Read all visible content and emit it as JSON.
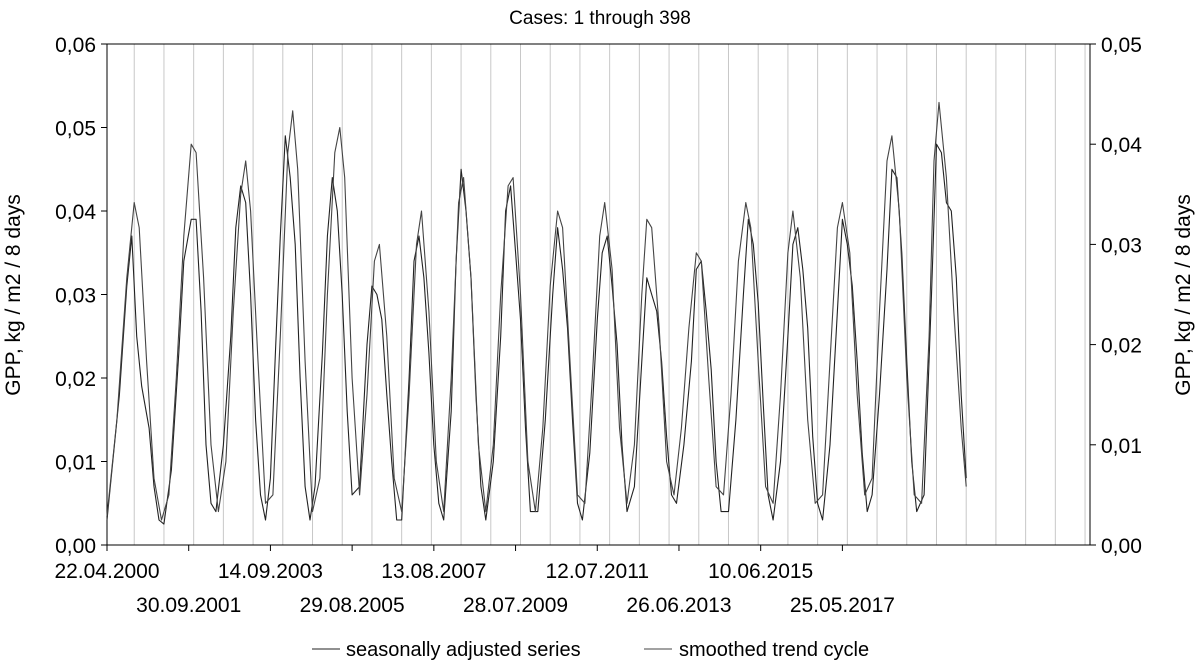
{
  "chart_data": {
    "type": "line",
    "title": "Cases: 1 through 398",
    "ylabel_left": "GPP, kg / m2 / 8 days",
    "ylabel_right": "GPP, kg / m2 / 8 days",
    "ylim_left": [
      0,
      0.06
    ],
    "ylim_right": [
      0,
      0.05
    ],
    "yticks_left": [
      "0,00",
      "0,01",
      "0,02",
      "0,03",
      "0,04",
      "0,05",
      "0,06"
    ],
    "yticks_right": [
      "0,00",
      "0,01",
      "0,02",
      "0,03",
      "0,04",
      "0,05"
    ],
    "x_case_range": [
      1,
      398
    ],
    "xticks_upper": [
      {
        "case": 1,
        "label": "22.04.2000"
      },
      {
        "case": 67,
        "label": "14.09.2003"
      },
      {
        "case": 133,
        "label": "13.08.2007"
      },
      {
        "case": 199,
        "label": "12.07.2011"
      },
      {
        "case": 265,
        "label": "10.06.2015"
      }
    ],
    "xticks_lower": [
      {
        "case": 34,
        "label": "30.09.2001"
      },
      {
        "case": 100,
        "label": "29.08.2005"
      },
      {
        "case": 166,
        "label": "28.07.2009"
      },
      {
        "case": 232,
        "label": "26.06.2013"
      },
      {
        "case": 298,
        "label": "25.05.2017"
      }
    ],
    "gridlines": "vertical",
    "legend_position": "bottom",
    "series": [
      {
        "name": "seasonally adjusted series",
        "color": "#222222",
        "points": [
          [
            1,
            0.003
          ],
          [
            6,
            0.018
          ],
          [
            9,
            0.031
          ],
          [
            11,
            0.037
          ],
          [
            13,
            0.025
          ],
          [
            15,
            0.019
          ],
          [
            18,
            0.014
          ],
          [
            20,
            0.007
          ],
          [
            22,
            0.003
          ],
          [
            24,
            0.0025
          ],
          [
            27,
            0.009
          ],
          [
            30,
            0.023
          ],
          [
            32,
            0.034
          ],
          [
            35,
            0.039
          ],
          [
            37,
            0.039
          ],
          [
            39,
            0.028
          ],
          [
            41,
            0.012
          ],
          [
            43,
            0.005
          ],
          [
            45,
            0.004
          ],
          [
            48,
            0.012
          ],
          [
            51,
            0.025
          ],
          [
            53,
            0.038
          ],
          [
            55,
            0.043
          ],
          [
            57,
            0.041
          ],
          [
            59,
            0.03
          ],
          [
            61,
            0.015
          ],
          [
            63,
            0.006
          ],
          [
            65,
            0.003
          ],
          [
            67,
            0.008
          ],
          [
            69,
            0.023
          ],
          [
            71,
            0.037
          ],
          [
            73,
            0.049
          ],
          [
            75,
            0.044
          ],
          [
            77,
            0.036
          ],
          [
            79,
            0.02
          ],
          [
            81,
            0.007
          ],
          [
            83,
            0.003
          ],
          [
            85,
            0.007
          ],
          [
            88,
            0.023
          ],
          [
            90,
            0.037
          ],
          [
            92,
            0.044
          ],
          [
            94,
            0.04
          ],
          [
            96,
            0.03
          ],
          [
            98,
            0.016
          ],
          [
            100,
            0.006
          ],
          [
            103,
            0.007
          ],
          [
            106,
            0.024
          ],
          [
            108,
            0.031
          ],
          [
            110,
            0.03
          ],
          [
            112,
            0.027
          ],
          [
            114,
            0.018
          ],
          [
            116,
            0.01
          ],
          [
            118,
            0.003
          ],
          [
            120,
            0.003
          ],
          [
            123,
            0.02
          ],
          [
            125,
            0.034
          ],
          [
            127,
            0.037
          ],
          [
            129,
            0.032
          ],
          [
            131,
            0.023
          ],
          [
            133,
            0.012
          ],
          [
            135,
            0.005
          ],
          [
            137,
            0.003
          ],
          [
            140,
            0.016
          ],
          [
            142,
            0.034
          ],
          [
            144,
            0.045
          ],
          [
            146,
            0.04
          ],
          [
            148,
            0.032
          ],
          [
            150,
            0.018
          ],
          [
            152,
            0.007
          ],
          [
            154,
            0.003
          ],
          [
            157,
            0.01
          ],
          [
            160,
            0.025
          ],
          [
            162,
            0.04
          ],
          [
            164,
            0.043
          ],
          [
            166,
            0.035
          ],
          [
            168,
            0.027
          ],
          [
            170,
            0.014
          ],
          [
            172,
            0.004
          ],
          [
            175,
            0.004
          ],
          [
            178,
            0.015
          ],
          [
            181,
            0.03
          ],
          [
            183,
            0.038
          ],
          [
            185,
            0.033
          ],
          [
            187,
            0.026
          ],
          [
            189,
            0.015
          ],
          [
            191,
            0.005
          ],
          [
            193,
            0.003
          ],
          [
            196,
            0.011
          ],
          [
            199,
            0.027
          ],
          [
            201,
            0.035
          ],
          [
            203,
            0.037
          ],
          [
            205,
            0.031
          ],
          [
            207,
            0.024
          ],
          [
            209,
            0.012
          ],
          [
            211,
            0.004
          ],
          [
            214,
            0.007
          ],
          [
            217,
            0.022
          ],
          [
            219,
            0.032
          ],
          [
            221,
            0.03
          ],
          [
            223,
            0.028
          ],
          [
            225,
            0.022
          ],
          [
            227,
            0.013
          ],
          [
            229,
            0.006
          ],
          [
            231,
            0.005
          ],
          [
            234,
            0.012
          ],
          [
            237,
            0.022
          ],
          [
            239,
            0.033
          ],
          [
            241,
            0.034
          ],
          [
            243,
            0.028
          ],
          [
            245,
            0.021
          ],
          [
            247,
            0.01
          ],
          [
            249,
            0.004
          ],
          [
            252,
            0.004
          ],
          [
            255,
            0.015
          ],
          [
            258,
            0.03
          ],
          [
            260,
            0.039
          ],
          [
            262,
            0.036
          ],
          [
            264,
            0.029
          ],
          [
            266,
            0.017
          ],
          [
            268,
            0.006
          ],
          [
            270,
            0.003
          ],
          [
            273,
            0.01
          ],
          [
            276,
            0.025
          ],
          [
            278,
            0.036
          ],
          [
            280,
            0.038
          ],
          [
            282,
            0.033
          ],
          [
            284,
            0.026
          ],
          [
            286,
            0.013
          ],
          [
            288,
            0.005
          ],
          [
            290,
            0.003
          ],
          [
            293,
            0.012
          ],
          [
            296,
            0.028
          ],
          [
            298,
            0.039
          ],
          [
            300,
            0.036
          ],
          [
            302,
            0.031
          ],
          [
            304,
            0.022
          ],
          [
            306,
            0.011
          ],
          [
            308,
            0.004
          ],
          [
            310,
            0.006
          ],
          [
            313,
            0.018
          ],
          [
            316,
            0.033
          ],
          [
            318,
            0.045
          ],
          [
            320,
            0.044
          ],
          [
            322,
            0.035
          ],
          [
            324,
            0.022
          ],
          [
            326,
            0.01
          ],
          [
            328,
            0.004
          ],
          [
            331,
            0.006
          ],
          [
            334,
            0.03
          ],
          [
            336,
            0.048
          ],
          [
            338,
            0.047
          ],
          [
            340,
            0.041
          ],
          [
            342,
            0.04
          ],
          [
            344,
            0.032
          ],
          [
            346,
            0.018
          ],
          [
            348,
            0.008
          ]
        ]
      },
      {
        "name": "smoothed trend cycle",
        "color": "#444444",
        "points": [
          [
            1,
            0.0035
          ],
          [
            5,
            0.015
          ],
          [
            9,
            0.032
          ],
          [
            12,
            0.041
          ],
          [
            14,
            0.038
          ],
          [
            17,
            0.022
          ],
          [
            20,
            0.008
          ],
          [
            23,
            0.003
          ],
          [
            26,
            0.006
          ],
          [
            29,
            0.02
          ],
          [
            32,
            0.037
          ],
          [
            35,
            0.048
          ],
          [
            37,
            0.047
          ],
          [
            40,
            0.032
          ],
          [
            43,
            0.012
          ],
          [
            46,
            0.004
          ],
          [
            49,
            0.01
          ],
          [
            52,
            0.028
          ],
          [
            55,
            0.042
          ],
          [
            57,
            0.046
          ],
          [
            59,
            0.04
          ],
          [
            62,
            0.022
          ],
          [
            65,
            0.005
          ],
          [
            68,
            0.006
          ],
          [
            71,
            0.025
          ],
          [
            74,
            0.047
          ],
          [
            76,
            0.052
          ],
          [
            78,
            0.045
          ],
          [
            81,
            0.022
          ],
          [
            84,
            0.004
          ],
          [
            87,
            0.008
          ],
          [
            90,
            0.03
          ],
          [
            93,
            0.047
          ],
          [
            95,
            0.05
          ],
          [
            97,
            0.044
          ],
          [
            100,
            0.02
          ],
          [
            103,
            0.006
          ],
          [
            106,
            0.018
          ],
          [
            109,
            0.034
          ],
          [
            111,
            0.036
          ],
          [
            114,
            0.025
          ],
          [
            117,
            0.008
          ],
          [
            120,
            0.004
          ],
          [
            123,
            0.018
          ],
          [
            126,
            0.036
          ],
          [
            128,
            0.04
          ],
          [
            131,
            0.028
          ],
          [
            134,
            0.01
          ],
          [
            137,
            0.004
          ],
          [
            140,
            0.02
          ],
          [
            143,
            0.041
          ],
          [
            145,
            0.044
          ],
          [
            148,
            0.032
          ],
          [
            151,
            0.012
          ],
          [
            154,
            0.004
          ],
          [
            157,
            0.012
          ],
          [
            160,
            0.03
          ],
          [
            163,
            0.043
          ],
          [
            165,
            0.044
          ],
          [
            168,
            0.03
          ],
          [
            171,
            0.01
          ],
          [
            174,
            0.004
          ],
          [
            177,
            0.014
          ],
          [
            180,
            0.031
          ],
          [
            183,
            0.04
          ],
          [
            185,
            0.038
          ],
          [
            188,
            0.022
          ],
          [
            191,
            0.006
          ],
          [
            194,
            0.005
          ],
          [
            197,
            0.02
          ],
          [
            200,
            0.037
          ],
          [
            202,
            0.041
          ],
          [
            205,
            0.033
          ],
          [
            208,
            0.014
          ],
          [
            211,
            0.005
          ],
          [
            214,
            0.012
          ],
          [
            217,
            0.03
          ],
          [
            219,
            0.039
          ],
          [
            221,
            0.038
          ],
          [
            224,
            0.026
          ],
          [
            227,
            0.01
          ],
          [
            230,
            0.006
          ],
          [
            233,
            0.014
          ],
          [
            236,
            0.026
          ],
          [
            239,
            0.035
          ],
          [
            241,
            0.034
          ],
          [
            244,
            0.02
          ],
          [
            247,
            0.007
          ],
          [
            250,
            0.006
          ],
          [
            253,
            0.018
          ],
          [
            256,
            0.034
          ],
          [
            259,
            0.041
          ],
          [
            261,
            0.038
          ],
          [
            264,
            0.022
          ],
          [
            267,
            0.007
          ],
          [
            270,
            0.005
          ],
          [
            273,
            0.018
          ],
          [
            276,
            0.035
          ],
          [
            278,
            0.04
          ],
          [
            281,
            0.032
          ],
          [
            284,
            0.015
          ],
          [
            287,
            0.005
          ],
          [
            290,
            0.006
          ],
          [
            293,
            0.022
          ],
          [
            296,
            0.038
          ],
          [
            298,
            0.041
          ],
          [
            301,
            0.035
          ],
          [
            304,
            0.018
          ],
          [
            307,
            0.006
          ],
          [
            310,
            0.008
          ],
          [
            313,
            0.028
          ],
          [
            316,
            0.046
          ],
          [
            318,
            0.049
          ],
          [
            321,
            0.04
          ],
          [
            324,
            0.02
          ],
          [
            327,
            0.006
          ],
          [
            330,
            0.005
          ],
          [
            333,
            0.025
          ],
          [
            335,
            0.046
          ],
          [
            337,
            0.053
          ],
          [
            340,
            0.044
          ],
          [
            343,
            0.028
          ],
          [
            346,
            0.014
          ],
          [
            348,
            0.007
          ]
        ]
      }
    ]
  }
}
